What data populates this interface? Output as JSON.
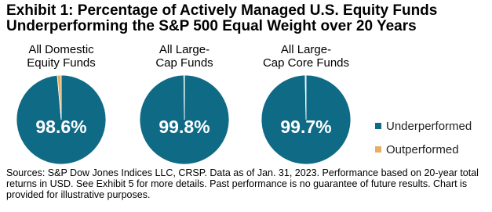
{
  "title": "Exhibit 1: Percentage of Actively Managed U.S. Equity Funds\nUnderperforming the S&P 500 Equal Weight over 20 Years",
  "footnote": "Sources: S&P Dow Jones Indices LLC, CRSP.  Data as of Jan. 31, 2023.  Performance based on 20-year total returns in USD.  See Exhibit 5 for more details.  Past performance is no guarantee of future results.  Chart is provided for illustrative purposes.",
  "chart_data": [
    {
      "type": "pie",
      "title": "All Domestic\nEquity Funds",
      "categories": [
        "Underperformed",
        "Outperformed"
      ],
      "values": [
        98.6,
        1.4
      ],
      "value_labels": [
        "98.6%",
        null
      ],
      "colors": [
        "#0f6a86",
        "#e6b064"
      ]
    },
    {
      "type": "pie",
      "title": "All Large-\nCap Funds",
      "categories": [
        "Underperformed",
        "Outperformed"
      ],
      "values": [
        99.8,
        0.2
      ],
      "value_labels": [
        "99.8%",
        null
      ],
      "colors": [
        "#0f6a86",
        "#e6b064"
      ]
    },
    {
      "type": "pie",
      "title": "All Large-\nCap Core Funds",
      "categories": [
        "Underperformed",
        "Outperformed"
      ],
      "values": [
        99.7,
        0.3
      ],
      "value_labels": [
        "99.7%",
        null
      ],
      "colors": [
        "#0f6a86",
        "#e6b064"
      ]
    }
  ]
}
